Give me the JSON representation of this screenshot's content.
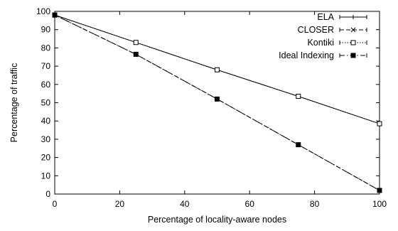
{
  "chart_data": {
    "type": "line",
    "xlabel": "Percentage of locality-aware nodes",
    "ylabel": "Percentage of traffic",
    "xlim": [
      0,
      100
    ],
    "ylim": [
      0,
      100
    ],
    "xticks": [
      0,
      20,
      40,
      60,
      80,
      100
    ],
    "yticks": [
      0,
      10,
      20,
      30,
      40,
      50,
      60,
      70,
      80,
      90,
      100
    ],
    "grid": false,
    "legend_position": "top-right",
    "x": [
      0,
      25,
      50,
      75,
      100
    ],
    "series": [
      {
        "name": "ELA",
        "marker": "plus",
        "dash": "solid",
        "color": "#000000",
        "values": [
          98,
          83,
          68,
          53.5,
          38.5
        ]
      },
      {
        "name": "CLOSER",
        "marker": "cross",
        "dash": "dashed",
        "color": "#000000",
        "values": [
          98,
          76.5,
          52,
          27,
          2
        ]
      },
      {
        "name": "Kontiki",
        "marker": "open-square",
        "dash": "dotted",
        "color": "#000000",
        "values": [
          98,
          83,
          68,
          53.5,
          38.5
        ]
      },
      {
        "name": "Ideal Indexing",
        "marker": "filled-square",
        "dash": "dashdot",
        "color": "#000000",
        "values": [
          98,
          76.5,
          52,
          27,
          2
        ]
      }
    ]
  }
}
